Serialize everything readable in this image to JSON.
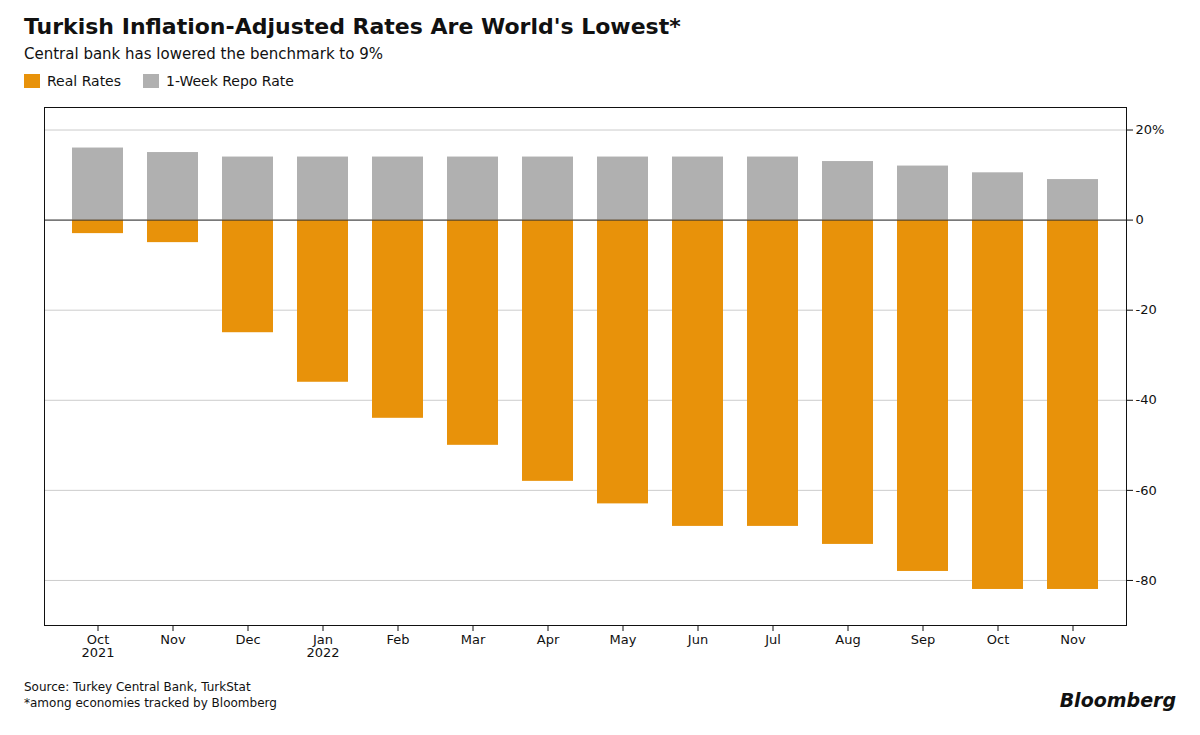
{
  "chart_data": {
    "type": "bar",
    "title": "Turkish Inflation-Adjusted Rates Are World's Lowest*",
    "subtitle": "Central bank has lowered the benchmark to 9%",
    "source": "Source:  Turkey Central Bank, TurkStat\n*among economies tracked by Bloomberg",
    "annotations": [
      "Bloomberg"
    ],
    "categories": [
      "Oct\n2021",
      "Nov",
      "Dec",
      "Jan\n2022",
      "Feb",
      "Mar",
      "Apr",
      "May",
      "Jun",
      "Jul",
      "Aug",
      "Sep",
      "Oct",
      "Nov"
    ],
    "series": [
      {
        "name": "Real Rates",
        "color": "#E8920A",
        "values": [
          -3,
          -5,
          -25,
          -36,
          -44,
          -50,
          -58,
          -63,
          -68,
          -68,
          -72,
          -78,
          -82,
          -82
        ]
      },
      {
        "name": "1-Week Repo Rate",
        "color": "#B0B0B0",
        "values": [
          16,
          15,
          14,
          14,
          14,
          14,
          14,
          14,
          14,
          14,
          13,
          12,
          10.5,
          9
        ]
      }
    ],
    "ylim": [
      -90,
      25
    ],
    "yticks": [
      {
        "value": 20,
        "label": "20%"
      },
      0,
      -20,
      -40,
      -60,
      -80
    ],
    "grid": true,
    "legend": "upper left"
  }
}
